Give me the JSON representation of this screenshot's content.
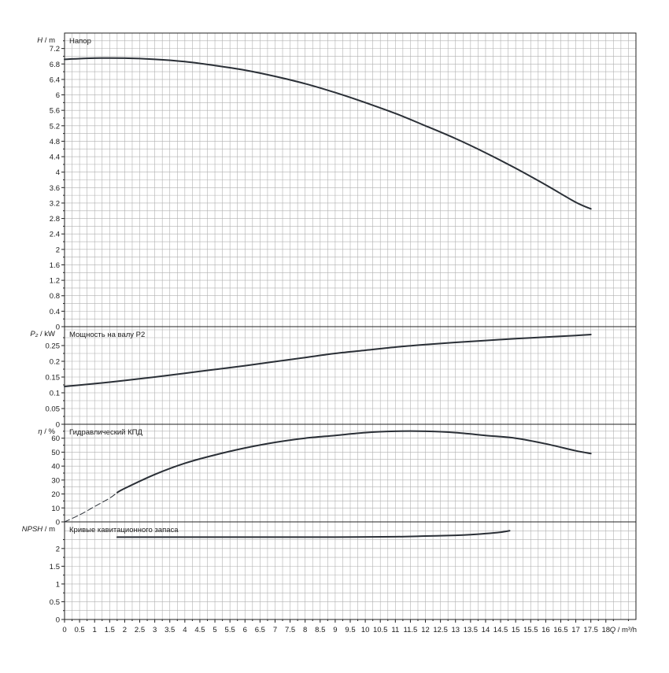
{
  "colors": {
    "grid": "#b0b0b0",
    "frame": "#222222",
    "curve": "#2a2f36",
    "background": "#ffffff"
  },
  "x_axis": {
    "label_q": "Q",
    "label_unit": " / m³/h",
    "range": [
      0,
      19
    ],
    "ticks": [
      0,
      0.5,
      1,
      1.5,
      2,
      2.5,
      3,
      3.5,
      4,
      4.5,
      5,
      5.5,
      6,
      6.5,
      7,
      7.5,
      8,
      8.5,
      9,
      9.5,
      10,
      10.5,
      11,
      11.5,
      12,
      12.5,
      13,
      13.5,
      14,
      14.5,
      15,
      15.5,
      16,
      16.5,
      17,
      17.5,
      18
    ],
    "tick_labels": [
      "0",
      "0.5",
      "1",
      "1.5",
      "2",
      "2.5",
      "3",
      "3.5",
      "4",
      "4.5",
      "5",
      "5.5",
      "6",
      "6.5",
      "7",
      "7.5",
      "8",
      "8.5",
      "9",
      "9.5",
      "10",
      "10.5",
      "11",
      "11.5",
      "12",
      "12.5",
      "13",
      "13.5",
      "14",
      "14.5",
      "15",
      "15.5",
      "16",
      "16.5",
      "17",
      "17.5",
      "18"
    ]
  },
  "chart_data": [
    {
      "type": "line",
      "title": "Напор",
      "ylabel_symbol": "H",
      "ylabel_unit": " / m",
      "ylim": [
        0,
        7.6
      ],
      "yticks": [
        0,
        0.4,
        0.8,
        1.2,
        1.6,
        2,
        2.4,
        2.8,
        3.2,
        3.6,
        4,
        4.4,
        4.8,
        5.2,
        5.6,
        6,
        6.4,
        6.8,
        7.2
      ],
      "ytick_labels": [
        "0",
        "0.4",
        "0.8",
        "1.2",
        "1.6",
        "2",
        "2.4",
        "2.8",
        "3.2",
        "3.6",
        "4",
        "4.4",
        "4.8",
        "5.2",
        "5.6",
        "6",
        "6.4",
        "6.8",
        "7.2"
      ],
      "grid": true,
      "series": [
        {
          "x": [
            0,
            1,
            2,
            3,
            4,
            5,
            6,
            7,
            8,
            9,
            10,
            11,
            12,
            13,
            14,
            15,
            16,
            17,
            17.5
          ],
          "y": [
            6.92,
            6.95,
            6.95,
            6.92,
            6.86,
            6.76,
            6.64,
            6.48,
            6.29,
            6.06,
            5.8,
            5.52,
            5.2,
            4.87,
            4.5,
            4.1,
            3.67,
            3.22,
            3.05
          ]
        }
      ]
    },
    {
      "type": "line",
      "title": "Мощность на валу P2",
      "ylabel_symbol": "P₂",
      "ylabel_unit": " / kW",
      "ylim": [
        0,
        0.31
      ],
      "yticks": [
        0,
        0.05,
        0.1,
        0.15,
        0.2,
        0.25
      ],
      "ytick_labels": [
        "0",
        "0.05",
        "0.1",
        "0.15",
        "0.2",
        "0.25"
      ],
      "grid": true,
      "series": [
        {
          "x": [
            0,
            1,
            2,
            3,
            4,
            5,
            6,
            7,
            8,
            9,
            10,
            11,
            12,
            13,
            14,
            15,
            16,
            17,
            17.5
          ],
          "y": [
            0.12,
            0.129,
            0.139,
            0.15,
            0.162,
            0.174,
            0.186,
            0.199,
            0.212,
            0.225,
            0.235,
            0.245,
            0.253,
            0.26,
            0.266,
            0.272,
            0.277,
            0.282,
            0.285
          ]
        }
      ]
    },
    {
      "type": "line",
      "title": "Гидравлический КПД",
      "ylabel_symbol": "η",
      "ylabel_unit": " / %",
      "ylim": [
        0,
        70
      ],
      "yticks": [
        0,
        10,
        20,
        30,
        40,
        50,
        60
      ],
      "ytick_labels": [
        "0",
        "10",
        "20",
        "30",
        "40",
        "50",
        "60"
      ],
      "grid": true,
      "series": [
        {
          "dashed": true,
          "x": [
            0,
            0.5,
            1,
            1.5,
            1.75
          ],
          "y": [
            0,
            5,
            11,
            17,
            21
          ]
        },
        {
          "x": [
            1.75,
            2,
            3,
            4,
            5,
            6,
            7,
            8,
            9,
            10,
            11,
            12,
            13,
            14,
            15,
            16,
            17,
            17.5
          ],
          "y": [
            21,
            24,
            34,
            42,
            48,
            53,
            57,
            60,
            62,
            64,
            65,
            65,
            64,
            62,
            60,
            56,
            51,
            49
          ]
        }
      ]
    },
    {
      "type": "line",
      "title": "Кривые кавитационного запаса",
      "ylabel_symbol": "NPSH",
      "ylabel_unit": " / m",
      "ylim": [
        0,
        2.75
      ],
      "yticks": [
        0,
        0.5,
        1,
        1.5,
        2
      ],
      "ytick_labels": [
        "0",
        "0.5",
        "1",
        "1.5",
        "2"
      ],
      "grid": true,
      "series": [
        {
          "x": [
            1.75,
            3,
            5,
            7,
            9,
            11,
            12,
            13,
            13.5,
            14,
            14.5,
            14.8
          ],
          "y": [
            2.32,
            2.32,
            2.32,
            2.32,
            2.32,
            2.33,
            2.35,
            2.37,
            2.39,
            2.42,
            2.46,
            2.5
          ]
        }
      ]
    }
  ]
}
